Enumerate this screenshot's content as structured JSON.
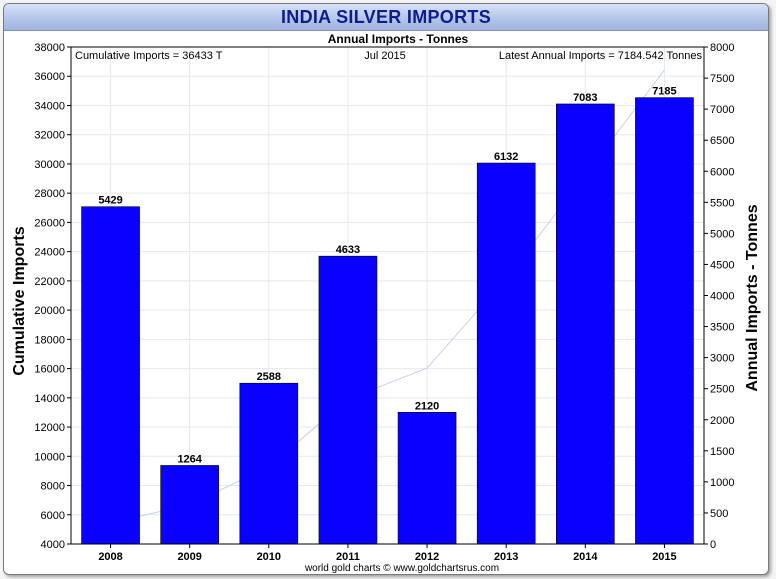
{
  "header": {
    "title": "INDIA SILVER IMPORTS"
  },
  "colors": {
    "bar": "#0a00ff",
    "line": "#c8cff2",
    "title": "#101c8c",
    "grid": "#e6e8ef"
  },
  "chart_data": {
    "type": "bar",
    "title": "Annual Imports - Tonnes",
    "ylabel_left": "Cumulative Imports",
    "ylabel_right": "Annual Imports - Tonnes",
    "info_left": "Cumulative Imports = 36433 T",
    "info_center": "Jul 2015",
    "info_right": "Latest Annual Imports = 7184.542 Tonnes",
    "footer": "world gold charts © www.goldchartsrus.com",
    "categories": [
      "2008",
      "2009",
      "2010",
      "2011",
      "2012",
      "2013",
      "2014",
      "2015"
    ],
    "series": [
      {
        "name": "Annual Imports",
        "axis": "right",
        "values": [
          5429,
          1264,
          2588,
          4633,
          2120,
          6132,
          7083,
          7185
        ]
      },
      {
        "name": "Cumulative Imports",
        "axis": "left",
        "type": "line",
        "values": [
          5429,
          6693,
          9281,
          13914,
          16034,
          22166,
          29249,
          36433
        ]
      }
    ],
    "y_left": {
      "min": 4000,
      "max": 38000,
      "step": 2000
    },
    "y_right": {
      "min": 0,
      "max": 8000,
      "step": 500
    },
    "grid": true
  }
}
